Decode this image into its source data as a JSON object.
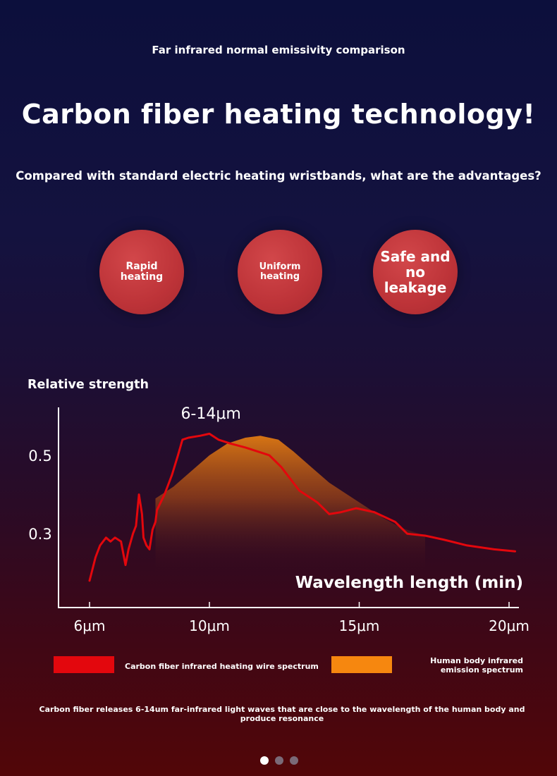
{
  "page": {
    "subtitle": "Far infrared normal emissivity comparison",
    "headline": "Carbon fiber heating technology!",
    "question": "Compared with standard electric heating wristbands, what are the advantages?",
    "bubbles": [
      {
        "line1": "Rapid",
        "line2": "heating"
      },
      {
        "line1": "Uniform",
        "line2": "heating"
      },
      {
        "text": "Safe and no leakage"
      }
    ],
    "footnote": "Carbon fiber releases 6-14um far-infrared light waves that are close to the wavelength of the human body and produce resonance",
    "carousel": {
      "count": 3,
      "active_index": 0
    }
  },
  "colors": {
    "carbon_line": "#e3070d",
    "body_fill": "#f6870f",
    "bubble": "#c0363a"
  },
  "chart_data": {
    "type": "line",
    "ylabel": "Relative strength",
    "xlabel": "Wavelength length (min)",
    "annotation": "6-14μm",
    "x_ticks": [
      {
        "value": 6,
        "label": "6μm"
      },
      {
        "value": 10,
        "label": "10μm"
      },
      {
        "value": 15,
        "label": "15μm"
      },
      {
        "value": 20,
        "label": "20μm"
      }
    ],
    "y_ticks": [
      {
        "value": 0.5,
        "label": "0.5"
      },
      {
        "value": 0.3,
        "label": "0.3"
      }
    ],
    "xlim": [
      5,
      20.4
    ],
    "ylim": [
      0.115,
      0.59
    ],
    "series": [
      {
        "name": "Carbon fiber infrared heating wire spectrum",
        "kind": "line",
        "color": "#e3070d",
        "points": [
          [
            6.0,
            0.18
          ],
          [
            6.2,
            0.24
          ],
          [
            6.35,
            0.27
          ],
          [
            6.55,
            0.29
          ],
          [
            6.7,
            0.28
          ],
          [
            6.85,
            0.29
          ],
          [
            7.05,
            0.28
          ],
          [
            7.2,
            0.22
          ],
          [
            7.3,
            0.26
          ],
          [
            7.45,
            0.3
          ],
          [
            7.55,
            0.32
          ],
          [
            7.65,
            0.4
          ],
          [
            7.75,
            0.35
          ],
          [
            7.8,
            0.29
          ],
          [
            7.9,
            0.27
          ],
          [
            8.0,
            0.26
          ],
          [
            8.1,
            0.31
          ],
          [
            8.2,
            0.33
          ],
          [
            8.25,
            0.36
          ],
          [
            8.5,
            0.4
          ],
          [
            8.75,
            0.45
          ],
          [
            8.95,
            0.5
          ],
          [
            9.1,
            0.54
          ],
          [
            9.3,
            0.545
          ],
          [
            9.7,
            0.55
          ],
          [
            10.0,
            0.555
          ],
          [
            10.3,
            0.54
          ],
          [
            10.7,
            0.53
          ],
          [
            11.2,
            0.52
          ],
          [
            11.6,
            0.51
          ],
          [
            12.0,
            0.5
          ],
          [
            12.4,
            0.47
          ],
          [
            13.0,
            0.41
          ],
          [
            13.6,
            0.38
          ],
          [
            14.0,
            0.35
          ],
          [
            14.4,
            0.355
          ],
          [
            14.9,
            0.365
          ],
          [
            15.5,
            0.355
          ],
          [
            16.2,
            0.33
          ],
          [
            16.6,
            0.3
          ],
          [
            17.2,
            0.295
          ],
          [
            17.8,
            0.285
          ],
          [
            18.6,
            0.27
          ],
          [
            19.5,
            0.26
          ],
          [
            20.2,
            0.255
          ]
        ]
      },
      {
        "name": "Human body infrared emission spectrum",
        "kind": "area",
        "color": "#f6870f",
        "points": [
          [
            8.2,
            0.39
          ],
          [
            8.8,
            0.42
          ],
          [
            9.4,
            0.46
          ],
          [
            10.0,
            0.5
          ],
          [
            10.6,
            0.53
          ],
          [
            11.2,
            0.545
          ],
          [
            11.7,
            0.55
          ],
          [
            12.3,
            0.54
          ],
          [
            12.8,
            0.51
          ],
          [
            13.4,
            0.47
          ],
          [
            14.0,
            0.43
          ],
          [
            14.6,
            0.4
          ],
          [
            15.2,
            0.37
          ],
          [
            15.8,
            0.34
          ],
          [
            16.4,
            0.315
          ],
          [
            17.2,
            0.295
          ]
        ]
      }
    ]
  }
}
